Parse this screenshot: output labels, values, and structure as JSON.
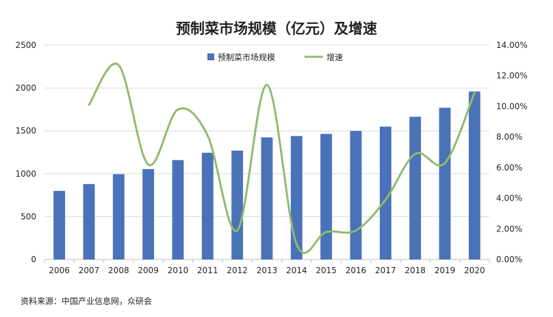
{
  "chart_data": {
    "type": "bar",
    "title": "预制菜市场规模（亿元）及增速",
    "source": "资料来源：中国产业信息网，众研会",
    "categories": [
      "2006",
      "2007",
      "2008",
      "2009",
      "2010",
      "2011",
      "2012",
      "2013",
      "2014",
      "2015",
      "2016",
      "2017",
      "2018",
      "2019",
      "2020"
    ],
    "series": [
      {
        "name": "预制菜市场规模",
        "kind": "bar",
        "axis": "left",
        "color": "#4a72b8",
        "values": [
          800,
          880,
          995,
          1055,
          1160,
          1245,
          1270,
          1425,
          1440,
          1465,
          1500,
          1550,
          1665,
          1770,
          1960
        ]
      },
      {
        "name": "增速",
        "kind": "line",
        "axis": "right",
        "color": "#8fbb6e",
        "values": [
          null,
          10.1,
          12.7,
          6.2,
          9.8,
          8.1,
          1.9,
          11.4,
          1.0,
          1.8,
          1.9,
          3.9,
          6.9,
          6.3,
          10.9
        ]
      }
    ],
    "y_left": {
      "min": 0,
      "max": 2500,
      "ticks": [
        "0",
        "500",
        "1000",
        "1500",
        "2000",
        "2500"
      ]
    },
    "y_right": {
      "min": 0,
      "max": 14,
      "ticks": [
        "0.00%",
        "2.00%",
        "4.00%",
        "6.00%",
        "8.00%",
        "10.00%",
        "12.00%",
        "14.00%"
      ]
    },
    "grid": true,
    "legend_position": "top-center"
  }
}
